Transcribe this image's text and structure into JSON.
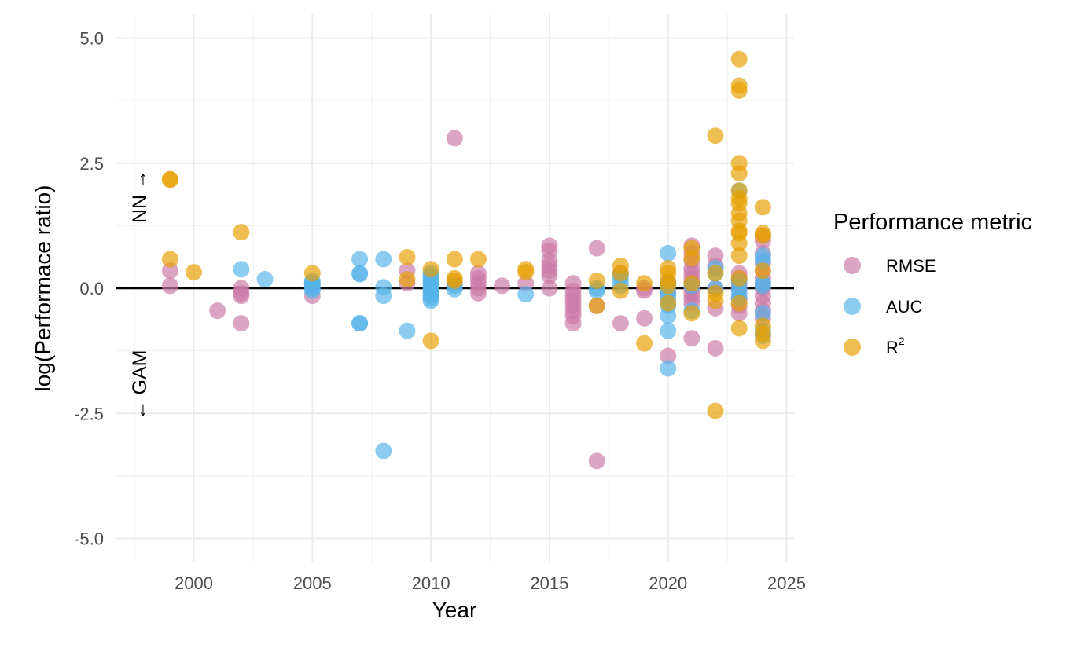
{
  "chart_data": {
    "type": "scatter",
    "title": "",
    "xlabel": "Year",
    "ylabel": "log(Performace ratio)",
    "xlim": [
      1997.5,
      2025.2
    ],
    "ylim": [
      -5.5,
      5.5
    ],
    "x_ticks": [
      2000,
      2005,
      2010,
      2015,
      2020,
      2025
    ],
    "x_tick_labels": [
      "2000",
      "2005",
      "2010",
      "2015",
      "2020",
      "2025"
    ],
    "y_ticks": [
      5.0,
      2.5,
      0.0,
      -2.5,
      -5.0
    ],
    "y_tick_labels": [
      "5.0",
      "2.5",
      "0.0",
      "-2.5",
      "-5.0"
    ],
    "grid": true,
    "reference_line_y": 0,
    "annotations": {
      "upper": "NN →",
      "lower": "← GAM"
    },
    "legend": {
      "title": "Performance metric",
      "position": "right"
    },
    "series": [
      {
        "name": "RMSE",
        "color": "#CC79A7",
        "points": [
          [
            1999,
            0.35
          ],
          [
            1999,
            0.05
          ],
          [
            2001,
            -0.45
          ],
          [
            2002,
            0.0
          ],
          [
            2002,
            -0.1
          ],
          [
            2002,
            -0.15
          ],
          [
            2002,
            -0.7
          ],
          [
            2005,
            -0.15
          ],
          [
            2005,
            0.1
          ],
          [
            2009,
            0.35
          ],
          [
            2009,
            0.1
          ],
          [
            2011,
            3.0
          ],
          [
            2011,
            0.1
          ],
          [
            2012,
            0.3
          ],
          [
            2012,
            0.2
          ],
          [
            2012,
            0.1
          ],
          [
            2012,
            0.0
          ],
          [
            2012,
            -0.1
          ],
          [
            2013,
            0.05
          ],
          [
            2014,
            0.1
          ],
          [
            2015,
            0.85
          ],
          [
            2015,
            0.75
          ],
          [
            2015,
            0.55
          ],
          [
            2015,
            0.45
          ],
          [
            2015,
            0.35
          ],
          [
            2015,
            0.25
          ],
          [
            2015,
            0.0
          ],
          [
            2016,
            0.1
          ],
          [
            2016,
            -0.05
          ],
          [
            2016,
            -0.15
          ],
          [
            2016,
            -0.25
          ],
          [
            2016,
            -0.35
          ],
          [
            2016,
            -0.45
          ],
          [
            2016,
            -0.55
          ],
          [
            2016,
            -0.7
          ],
          [
            2017,
            0.8
          ],
          [
            2017,
            -0.35
          ],
          [
            2017,
            -3.45
          ],
          [
            2018,
            0.3
          ],
          [
            2018,
            -0.7
          ],
          [
            2019,
            0.0
          ],
          [
            2019,
            -0.05
          ],
          [
            2019,
            -0.6
          ],
          [
            2020,
            -1.35
          ],
          [
            2020,
            0.1
          ],
          [
            2020,
            -0.1
          ],
          [
            2021,
            0.85
          ],
          [
            2021,
            0.7
          ],
          [
            2021,
            0.55
          ],
          [
            2021,
            0.4
          ],
          [
            2021,
            0.3
          ],
          [
            2021,
            0.2
          ],
          [
            2021,
            0.1
          ],
          [
            2021,
            0.0
          ],
          [
            2021,
            -0.1
          ],
          [
            2021,
            -0.2
          ],
          [
            2021,
            -0.3
          ],
          [
            2021,
            -1.0
          ],
          [
            2022,
            0.65
          ],
          [
            2022,
            0.45
          ],
          [
            2022,
            0.0
          ],
          [
            2022,
            -0.4
          ],
          [
            2022,
            -1.2
          ],
          [
            2023,
            0.3
          ],
          [
            2023,
            0.2
          ],
          [
            2023,
            0.1
          ],
          [
            2023,
            0.0
          ],
          [
            2023,
            -0.2
          ],
          [
            2023,
            -0.35
          ],
          [
            2023,
            -0.5
          ],
          [
            2024,
            1.05
          ],
          [
            2024,
            0.95
          ],
          [
            2024,
            0.7
          ],
          [
            2024,
            0.5
          ],
          [
            2024,
            0.35
          ],
          [
            2024,
            0.2
          ],
          [
            2024,
            0.1
          ],
          [
            2024,
            0.0
          ],
          [
            2024,
            -0.15
          ],
          [
            2024,
            -0.3
          ],
          [
            2024,
            -0.45
          ],
          [
            2024,
            -0.6
          ]
        ]
      },
      {
        "name": "AUC",
        "color": "#56B4E9",
        "points": [
          [
            2002,
            0.38
          ],
          [
            2003,
            0.18
          ],
          [
            2005,
            0.15
          ],
          [
            2005,
            0.1
          ],
          [
            2005,
            0.05
          ],
          [
            2005,
            0.0
          ],
          [
            2005,
            -0.05
          ],
          [
            2007,
            0.58
          ],
          [
            2007,
            0.3
          ],
          [
            2007,
            0.28
          ],
          [
            2007,
            -0.7
          ],
          [
            2007,
            -0.7
          ],
          [
            2008,
            0.58
          ],
          [
            2008,
            0.02
          ],
          [
            2008,
            -0.15
          ],
          [
            2008,
            -3.25
          ],
          [
            2009,
            -0.85
          ],
          [
            2010,
            0.3
          ],
          [
            2010,
            0.25
          ],
          [
            2010,
            0.2
          ],
          [
            2010,
            0.15
          ],
          [
            2010,
            0.1
          ],
          [
            2010,
            0.05
          ],
          [
            2010,
            0.0
          ],
          [
            2010,
            -0.05
          ],
          [
            2010,
            -0.1
          ],
          [
            2010,
            -0.15
          ],
          [
            2010,
            -0.2
          ],
          [
            2010,
            -0.25
          ],
          [
            2011,
            0.05
          ],
          [
            2011,
            -0.02
          ],
          [
            2014,
            -0.12
          ],
          [
            2017,
            0.0
          ],
          [
            2017,
            -0.05
          ],
          [
            2018,
            0.25
          ],
          [
            2018,
            0.15
          ],
          [
            2018,
            0.05
          ],
          [
            2020,
            0.7
          ],
          [
            2020,
            0.1
          ],
          [
            2020,
            -0.05
          ],
          [
            2020,
            -0.15
          ],
          [
            2020,
            -0.25
          ],
          [
            2020,
            -0.35
          ],
          [
            2020,
            -0.55
          ],
          [
            2020,
            -0.85
          ],
          [
            2020,
            -1.6
          ],
          [
            2021,
            0.05
          ],
          [
            2021,
            -0.45
          ],
          [
            2022,
            0.4
          ],
          [
            2022,
            0.3
          ],
          [
            2022,
            0.0
          ],
          [
            2023,
            1.95
          ],
          [
            2023,
            0.15
          ],
          [
            2023,
            0.0
          ],
          [
            2023,
            -0.1
          ],
          [
            2023,
            -0.2
          ],
          [
            2024,
            0.65
          ],
          [
            2024,
            0.55
          ],
          [
            2024,
            0.1
          ],
          [
            2024,
            0.05
          ],
          [
            2024,
            -0.5
          ],
          [
            2024,
            -0.85
          ],
          [
            2024,
            -0.95
          ]
        ]
      },
      {
        "name": "R2",
        "color": "#E69F00",
        "points": [
          [
            1999,
            2.18
          ],
          [
            1999,
            2.17
          ],
          [
            1999,
            0.58
          ],
          [
            2000,
            0.32
          ],
          [
            2002,
            1.12
          ],
          [
            2005,
            0.3
          ],
          [
            2009,
            0.62
          ],
          [
            2009,
            0.18
          ],
          [
            2010,
            0.38
          ],
          [
            2010,
            -1.05
          ],
          [
            2011,
            0.58
          ],
          [
            2011,
            0.2
          ],
          [
            2011,
            0.15
          ],
          [
            2012,
            0.58
          ],
          [
            2014,
            0.38
          ],
          [
            2014,
            0.32
          ],
          [
            2017,
            0.15
          ],
          [
            2017,
            -0.35
          ],
          [
            2018,
            0.45
          ],
          [
            2018,
            0.3
          ],
          [
            2018,
            -0.05
          ],
          [
            2019,
            0.1
          ],
          [
            2019,
            -1.1
          ],
          [
            2020,
            0.4
          ],
          [
            2020,
            0.3
          ],
          [
            2020,
            0.15
          ],
          [
            2020,
            0.05
          ],
          [
            2020,
            -0.3
          ],
          [
            2021,
            0.8
          ],
          [
            2021,
            0.6
          ],
          [
            2021,
            0.1
          ],
          [
            2021,
            -0.5
          ],
          [
            2022,
            3.05
          ],
          [
            2022,
            0.3
          ],
          [
            2022,
            -0.1
          ],
          [
            2022,
            -0.25
          ],
          [
            2022,
            -2.45
          ],
          [
            2023,
            4.58
          ],
          [
            2023,
            4.05
          ],
          [
            2023,
            3.95
          ],
          [
            2023,
            2.5
          ],
          [
            2023,
            2.3
          ],
          [
            2023,
            1.95
          ],
          [
            2023,
            1.8
          ],
          [
            2023,
            1.7
          ],
          [
            2023,
            1.5
          ],
          [
            2023,
            1.35
          ],
          [
            2023,
            1.15
          ],
          [
            2023,
            1.1
          ],
          [
            2023,
            0.9
          ],
          [
            2023,
            0.65
          ],
          [
            2023,
            0.2
          ],
          [
            2023,
            -0.3
          ],
          [
            2023,
            -0.8
          ],
          [
            2024,
            1.62
          ],
          [
            2024,
            1.1
          ],
          [
            2024,
            1.05
          ],
          [
            2024,
            0.35
          ],
          [
            2024,
            -0.75
          ],
          [
            2024,
            -0.9
          ],
          [
            2024,
            -1.05
          ]
        ]
      }
    ]
  }
}
